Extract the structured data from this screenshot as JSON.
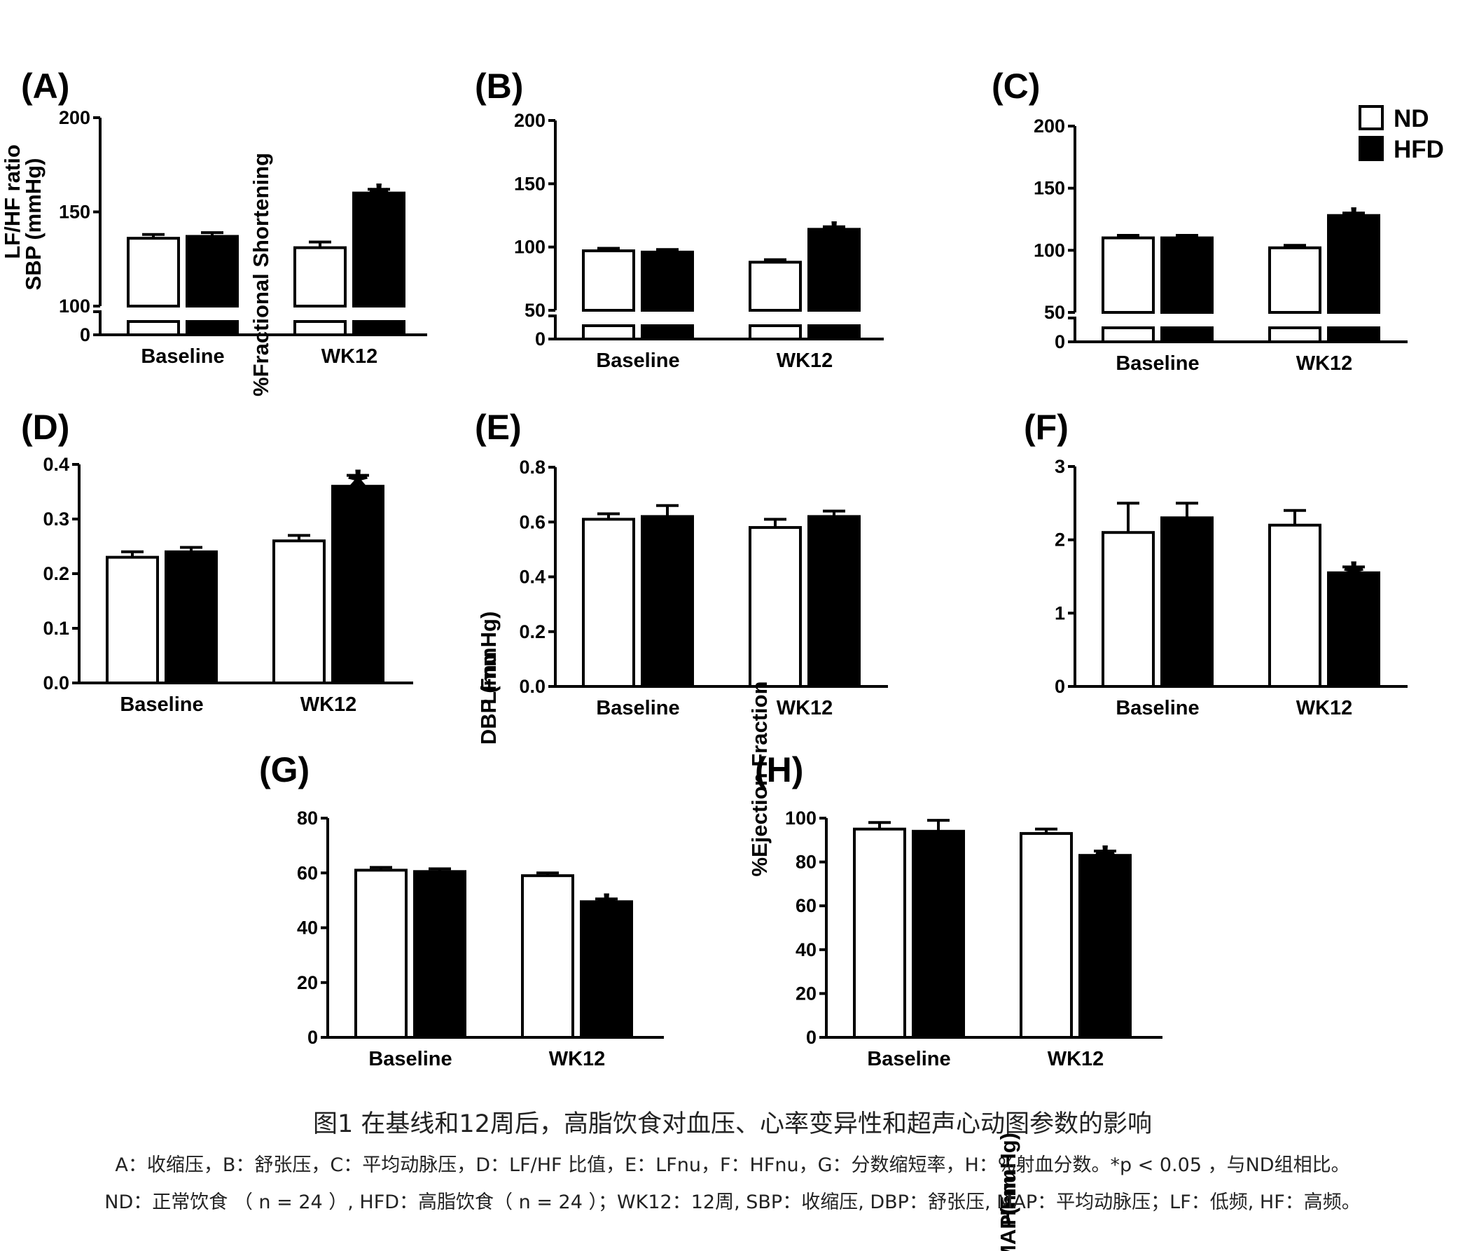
{
  "caption": {
    "title": "图1 在基线和12周后，高脂饮食对血压、心率变异性和超声心动图参数的影响",
    "line1": "A：收缩压，B：舒张压，C：平均动脉压，D：LF/HF 比值，E：LFnu，F：HFnu，G：分数缩短率，H：%射血分数。*p < 0.05 ，与ND组相比。",
    "line2": "ND：正常饮食 （ n = 24 ）, HFD：高脂饮食（ n = 24 ）；WK12：12周, SBP：收缩压, DBP：舒张压, MAP：平均动脉压；LF：低频, HF：高频。"
  },
  "legend": [
    {
      "label": "ND",
      "color": "#ffffff"
    },
    {
      "label": "HFD",
      "color": "#000000"
    }
  ],
  "chart_data": [
    {
      "panel": "(A)",
      "type": "bar",
      "ylabel": "SBP (mmHg)",
      "categories": [
        "Baseline",
        "WK12"
      ],
      "axis_break": true,
      "ylim": [
        100,
        200
      ],
      "yticks": [
        "200",
        "150",
        "100"
      ],
      "zero_tick": "0",
      "series": [
        {
          "name": "ND",
          "values": [
            136,
            131
          ],
          "errors": [
            2,
            3
          ]
        },
        {
          "name": "HFD",
          "values": [
            137,
            160
          ],
          "errors": [
            2,
            2
          ]
        }
      ],
      "significance": [
        [
          1,
          1
        ]
      ]
    },
    {
      "panel": "(B)",
      "type": "bar",
      "ylabel": "DBP (mmHg)",
      "categories": [
        "Baseline",
        "WK12"
      ],
      "axis_break": true,
      "ylim": [
        50,
        200
      ],
      "yticks": [
        "200",
        "150",
        "100",
        "50"
      ],
      "zero_tick": "0",
      "series": [
        {
          "name": "ND",
          "values": [
            97,
            88
          ],
          "errors": [
            2,
            2
          ]
        },
        {
          "name": "HFD",
          "values": [
            96,
            114
          ],
          "errors": [
            2,
            2
          ]
        }
      ],
      "significance": [
        [
          1,
          1
        ]
      ]
    },
    {
      "panel": "(C)",
      "type": "bar",
      "ylabel": "MAP(mmHg)",
      "categories": [
        "Baseline",
        "WK12"
      ],
      "axis_break": true,
      "ylim": [
        50,
        200
      ],
      "yticks": [
        "200",
        "150",
        "100",
        "50"
      ],
      "zero_tick": "0",
      "series": [
        {
          "name": "ND",
          "values": [
            110,
            102
          ],
          "errors": [
            2,
            2
          ]
        },
        {
          "name": "HFD",
          "values": [
            110,
            128
          ],
          "errors": [
            2,
            2
          ]
        }
      ],
      "significance": [
        [
          1,
          1
        ]
      ]
    },
    {
      "panel": "(D)",
      "type": "bar",
      "ylabel": "LF/HF ratio",
      "categories": [
        "Baseline",
        "WK12"
      ],
      "axis_break": false,
      "ylim": [
        0,
        0.4
      ],
      "yticks": [
        "0.4",
        "0.3",
        "0.2",
        "0.1",
        "0.0"
      ],
      "series": [
        {
          "name": "ND",
          "values": [
            0.23,
            0.26
          ],
          "errors": [
            0.01,
            0.01
          ]
        },
        {
          "name": "HFD",
          "values": [
            0.24,
            0.36
          ],
          "errors": [
            0.008,
            0.02
          ]
        }
      ],
      "significance": [
        [
          1,
          1
        ]
      ]
    },
    {
      "panel": "(E)",
      "type": "bar",
      "ylabel": "LFnu",
      "categories": [
        "Baseline",
        "WK12"
      ],
      "axis_break": false,
      "ylim": [
        0,
        0.8
      ],
      "yticks": [
        "0.8",
        "0.6",
        "0.4",
        "0.2",
        "0.0"
      ],
      "series": [
        {
          "name": "ND",
          "values": [
            0.61,
            0.58
          ],
          "errors": [
            0.02,
            0.03
          ]
        },
        {
          "name": "HFD",
          "values": [
            0.62,
            0.62
          ],
          "errors": [
            0.04,
            0.02
          ]
        }
      ],
      "significance": []
    },
    {
      "panel": "(F)",
      "type": "bar",
      "ylabel": "HFnu",
      "categories": [
        "Baseline",
        "WK12"
      ],
      "axis_break": false,
      "ylim": [
        0,
        3
      ],
      "yticks": [
        "3",
        "2",
        "1",
        "0"
      ],
      "series": [
        {
          "name": "ND",
          "values": [
            2.1,
            2.2
          ],
          "errors": [
            0.4,
            0.2
          ]
        },
        {
          "name": "HFD",
          "values": [
            2.3,
            1.55
          ],
          "errors": [
            0.2,
            0.08
          ]
        }
      ],
      "significance": [
        [
          1,
          1
        ]
      ]
    },
    {
      "panel": "(G)",
      "type": "bar",
      "ylabel": "%Fractional Shortening",
      "categories": [
        "Baseline",
        "WK12"
      ],
      "axis_break": false,
      "ylim": [
        0,
        80
      ],
      "yticks": [
        "80",
        "60",
        "40",
        "20",
        "0"
      ],
      "series": [
        {
          "name": "ND",
          "values": [
            61,
            59
          ],
          "errors": [
            1,
            1
          ]
        },
        {
          "name": "HFD",
          "values": [
            60.5,
            49.5
          ],
          "errors": [
            1,
            1
          ]
        }
      ],
      "significance": [
        [
          1,
          1
        ]
      ]
    },
    {
      "panel": "(H)",
      "type": "bar",
      "ylabel": "%Ejection Fraction",
      "categories": [
        "Baseline",
        "WK12"
      ],
      "axis_break": false,
      "ylim": [
        0,
        100
      ],
      "yticks": [
        "100",
        "80",
        "60",
        "40",
        "20",
        "0"
      ],
      "series": [
        {
          "name": "ND",
          "values": [
            95,
            93
          ],
          "errors": [
            3,
            2
          ]
        },
        {
          "name": "HFD",
          "values": [
            94,
            83
          ],
          "errors": [
            5,
            2
          ]
        }
      ],
      "significance": [
        [
          1,
          1
        ]
      ]
    }
  ]
}
